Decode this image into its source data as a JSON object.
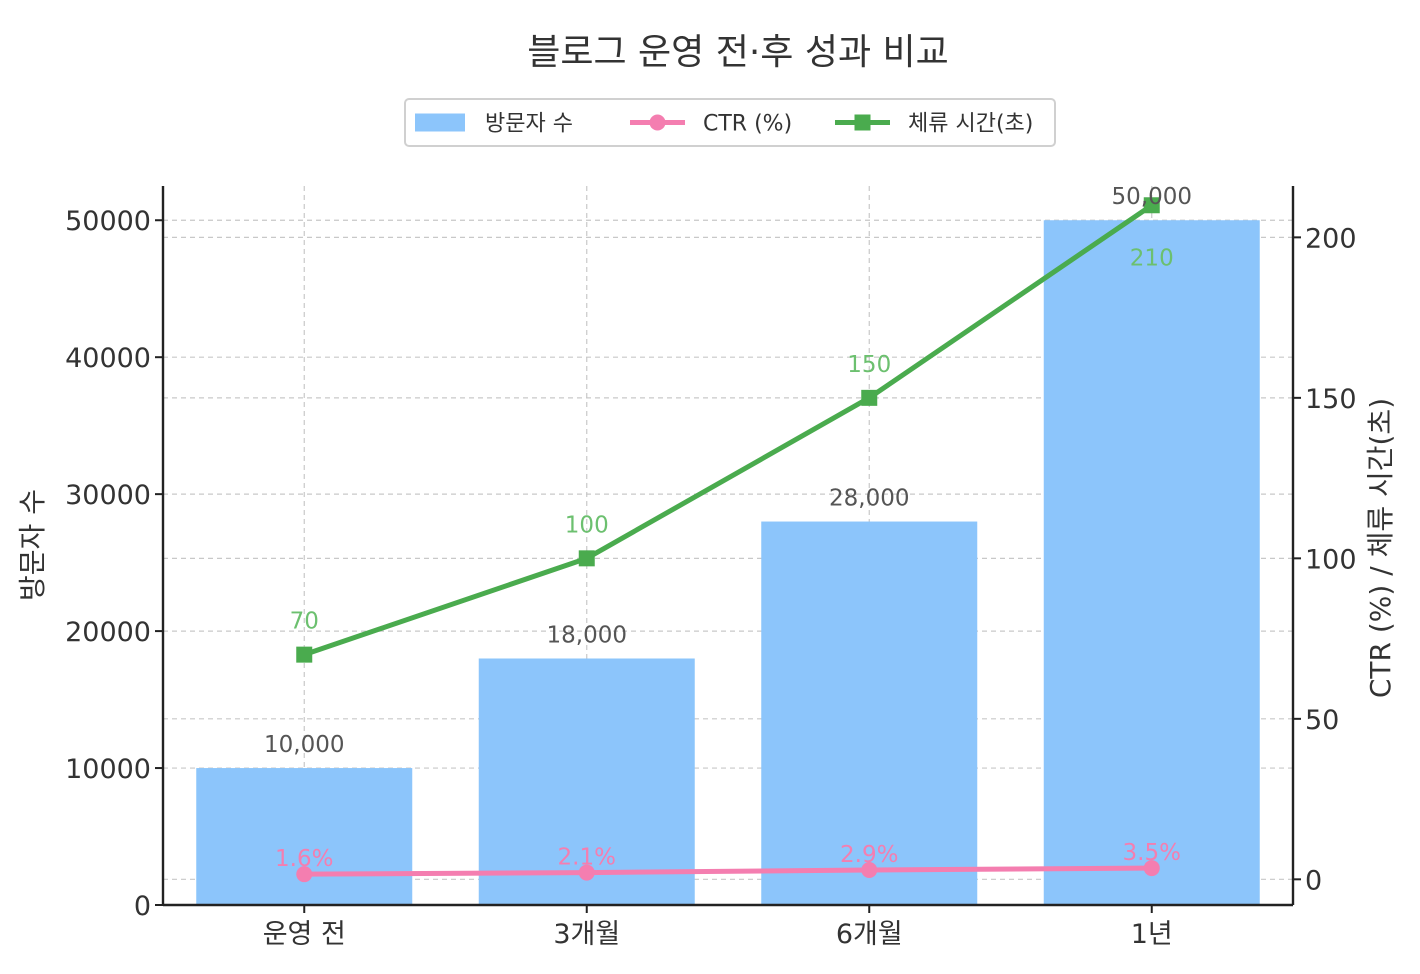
{
  "chart_data": {
    "type": "bar",
    "title": "블로그 운영 전·후 성과 비교",
    "categories": [
      "운영 전",
      "3개월",
      "6개월",
      "1년"
    ],
    "ylabel": "방문자 수",
    "y2label": "CTR (%) / 체류 시간(초)",
    "ylim": [
      0,
      52500
    ],
    "y2lim": [
      -8,
      216
    ],
    "yticks": [
      "0",
      "10000",
      "20000",
      "30000",
      "40000",
      "50000"
    ],
    "y2ticks": [
      "0",
      "50",
      "100",
      "150",
      "200"
    ],
    "grid": true,
    "legend_position": "top-center",
    "legend": [
      {
        "label": "방문자 수",
        "kind": "bar",
        "color": "#8cc5fb"
      },
      {
        "label": "CTR (%)",
        "kind": "line-circle",
        "color": "#f47eb0"
      },
      {
        "label": "체류 시간(초)",
        "kind": "line-square",
        "color": "#4aab4e"
      }
    ],
    "series": [
      {
        "name": "방문자 수",
        "type": "bar",
        "axis": "left",
        "color": "#8cc5fb",
        "values": [
          10000,
          18000,
          28000,
          50000
        ],
        "labels": [
          "10,000",
          "18,000",
          "28,000",
          "50,000"
        ]
      },
      {
        "name": "CTR (%)",
        "type": "line",
        "axis": "right",
        "marker": "circle",
        "color": "#f47eb0",
        "values": [
          1.6,
          2.1,
          2.9,
          3.5
        ],
        "labels": [
          "1.6%",
          "2.1%",
          "2.9%",
          "3.5%"
        ]
      },
      {
        "name": "체류 시간(초)",
        "type": "line",
        "axis": "right",
        "marker": "square",
        "color": "#4aab4e",
        "values": [
          70,
          100,
          150,
          210
        ],
        "labels": [
          "70",
          "100",
          "150",
          "210"
        ]
      }
    ]
  }
}
